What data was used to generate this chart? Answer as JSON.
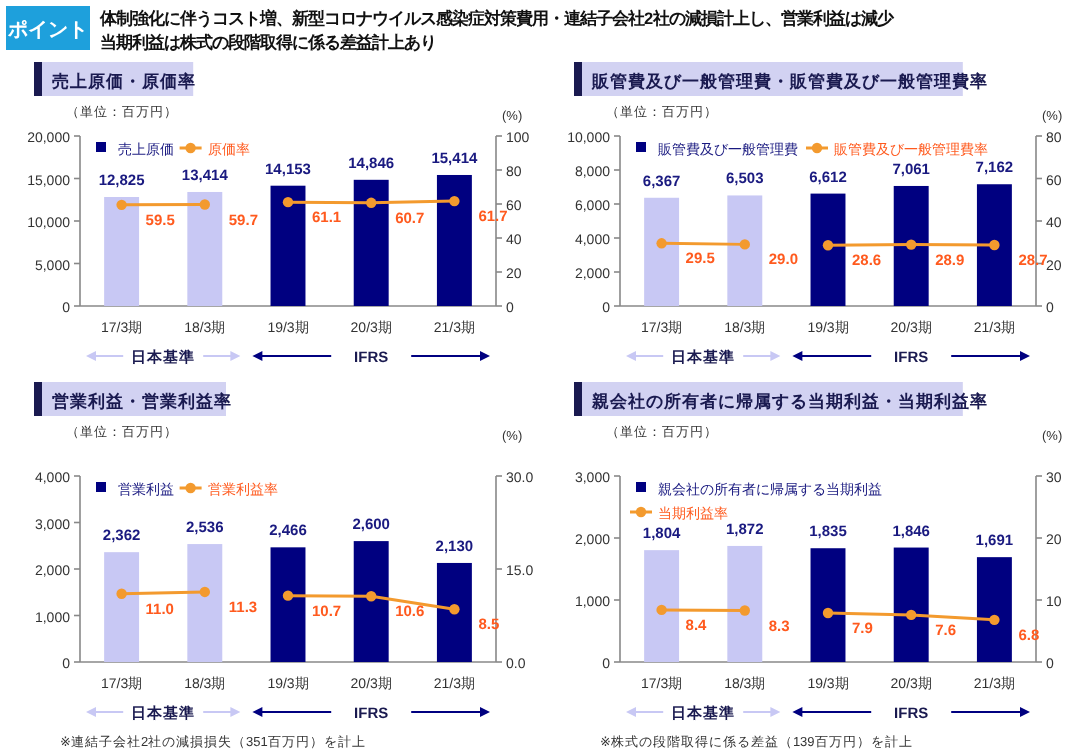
{
  "chart_data": [
    {
      "type": "other",
      "title": "ポイント",
      "annotations": [
        "体制強化に伴うコスト増、新型コロナウイルス感染症対策費用・連結子会社2社の減損計上し、営業利益は減少",
        "当期利益は株式の段階取得に係る差益計上あり"
      ]
    },
    {
      "type": "bar",
      "title": "売上原価・原価率",
      "ylabel": "（単位：百万円）",
      "y2label": "(%)",
      "categories": [
        "17/3期",
        "18/3期",
        "19/3期",
        "20/3期",
        "21/3期"
      ],
      "series": [
        {
          "name": "売上原価",
          "type": "bar",
          "color": "#000080",
          "colors": [
            "#c8c8f4",
            "#c8c8f4",
            "#000080",
            "#000080",
            "#000080"
          ],
          "values": [
            12825,
            13414,
            14153,
            14846,
            15414
          ],
          "value_labels": [
            "12,825",
            "13,414",
            "14,153",
            "14,846",
            "15,414"
          ]
        },
        {
          "name": "原価率",
          "type": "line",
          "axis": "y2",
          "color": "#f39a2e",
          "values": [
            59.5,
            59.7,
            61.1,
            60.7,
            61.7
          ],
          "value_labels": [
            "59.5",
            "59.7",
            "61.1",
            "60.7",
            "61.7"
          ]
        }
      ],
      "ylim": [
        0,
        20000
      ],
      "yticks": [
        {
          "value": 0,
          "label": "0"
        },
        {
          "value": 5000,
          "label": "5,000"
        },
        {
          "value": 10000,
          "label": "10,000"
        },
        {
          "value": 15000,
          "label": "15,000"
        },
        {
          "value": 20000,
          "label": "20,000"
        }
      ],
      "y2lim": [
        0,
        100
      ],
      "y2ticks": [
        0,
        20,
        40,
        60,
        80,
        100
      ],
      "legend": "top",
      "marker": "circle",
      "annotations": [
        "日本基準",
        "IFRS"
      ]
    },
    {
      "type": "bar",
      "title": "販管費及び一般管理費・販管費及び一般管理費率",
      "ylabel": "（単位：百万円）",
      "y2label": "(%)",
      "categories": [
        "17/3期",
        "18/3期",
        "19/3期",
        "20/3期",
        "21/3期"
      ],
      "series": [
        {
          "name": "販管費及び一般管理費",
          "type": "bar",
          "color": "#000080",
          "colors": [
            "#c8c8f4",
            "#c8c8f4",
            "#000080",
            "#000080",
            "#000080"
          ],
          "values": [
            6367,
            6503,
            6612,
            7061,
            7162
          ],
          "value_labels": [
            "6,367",
            "6,503",
            "6,612",
            "7,061",
            "7,162"
          ]
        },
        {
          "name": "販管費及び一般管理費率",
          "type": "line",
          "axis": "y2",
          "color": "#f39a2e",
          "values": [
            29.5,
            29.0,
            28.6,
            28.9,
            28.7
          ],
          "value_labels": [
            "29.5",
            "29.0",
            "28.6",
            "28.9",
            "28.7"
          ]
        }
      ],
      "ylim": [
        0,
        10000
      ],
      "yticks": [
        {
          "value": 0,
          "label": "0"
        },
        {
          "value": 2000,
          "label": "2,000"
        },
        {
          "value": 4000,
          "label": "4,000"
        },
        {
          "value": 6000,
          "label": "6,000"
        },
        {
          "value": 8000,
          "label": "8,000"
        },
        {
          "value": 10000,
          "label": "10,000"
        }
      ],
      "y2lim": [
        0,
        80
      ],
      "y2ticks": [
        0,
        20,
        40,
        60,
        80
      ],
      "legend": "top",
      "marker": "circle",
      "annotations": [
        "日本基準",
        "IFRS"
      ]
    },
    {
      "type": "bar",
      "title": "営業利益・営業利益率",
      "ylabel": "（単位：百万円）",
      "y2label": "(%)",
      "categories": [
        "17/3期",
        "18/3期",
        "19/3期",
        "20/3期",
        "21/3期"
      ],
      "series": [
        {
          "name": "営業利益",
          "type": "bar",
          "color": "#000080",
          "colors": [
            "#c8c8f4",
            "#c8c8f4",
            "#000080",
            "#000080",
            "#000080"
          ],
          "values": [
            2362,
            2536,
            2466,
            2600,
            2130
          ],
          "value_labels": [
            "2,362",
            "2,536",
            "2,466",
            "2,600",
            "2,130"
          ]
        },
        {
          "name": "営業利益率",
          "type": "line",
          "axis": "y2",
          "color": "#f39a2e",
          "values": [
            11.0,
            11.3,
            10.7,
            10.6,
            8.5
          ],
          "value_labels": [
            "11.0",
            "11.3",
            "10.7",
            "10.6",
            "8.5"
          ]
        }
      ],
      "ylim": [
        0,
        4000
      ],
      "yticks": [
        {
          "value": 0,
          "label": "0"
        },
        {
          "value": 1000,
          "label": "1,000"
        },
        {
          "value": 2000,
          "label": "2,000"
        },
        {
          "value": 3000,
          "label": "3,000"
        },
        {
          "value": 4000,
          "label": "4,000"
        }
      ],
      "y2lim": [
        0,
        30
      ],
      "y2ticks": [
        {
          "value": 0,
          "label": "0.0"
        },
        {
          "value": 15,
          "label": "15.0"
        },
        {
          "value": 30,
          "label": "30.0"
        }
      ],
      "legend": "top",
      "marker": "circle",
      "annotations": [
        "日本基準",
        "IFRS",
        "※連結子会社2社の減損損失（351百万円）を計上"
      ]
    },
    {
      "type": "bar",
      "title": "親会社の所有者に帰属する当期利益・当期利益率",
      "ylabel": "（単位：百万円）",
      "y2label": "(%)",
      "categories": [
        "17/3期",
        "18/3期",
        "19/3期",
        "20/3期",
        "21/3期"
      ],
      "series": [
        {
          "name": "親会社の所有者に帰属する当期利益",
          "type": "bar",
          "color": "#000080",
          "colors": [
            "#c8c8f4",
            "#c8c8f4",
            "#000080",
            "#000080",
            "#000080"
          ],
          "values": [
            1804,
            1872,
            1835,
            1846,
            1691
          ],
          "value_labels": [
            "1,804",
            "1,872",
            "1,835",
            "1,846",
            "1,691"
          ]
        },
        {
          "name": "当期利益率",
          "type": "line",
          "axis": "y2",
          "color": "#f39a2e",
          "values": [
            8.4,
            8.3,
            7.9,
            7.6,
            6.8
          ],
          "value_labels": [
            "8.4",
            "8.3",
            "7.9",
            "7.6",
            "6.8"
          ]
        }
      ],
      "ylim": [
        0,
        3000
      ],
      "yticks": [
        {
          "value": 0,
          "label": "0"
        },
        {
          "value": 1000,
          "label": "1,000"
        },
        {
          "value": 2000,
          "label": "2,000"
        },
        {
          "value": 3000,
          "label": "3,000"
        }
      ],
      "y2lim": [
        0,
        30
      ],
      "y2ticks": [
        0,
        10,
        20,
        30
      ],
      "legend": "top left",
      "marker": "circle",
      "annotations": [
        "日本基準",
        "IFRS",
        "※株式の段階取得に係る差益（139百万円）を計上"
      ]
    }
  ]
}
